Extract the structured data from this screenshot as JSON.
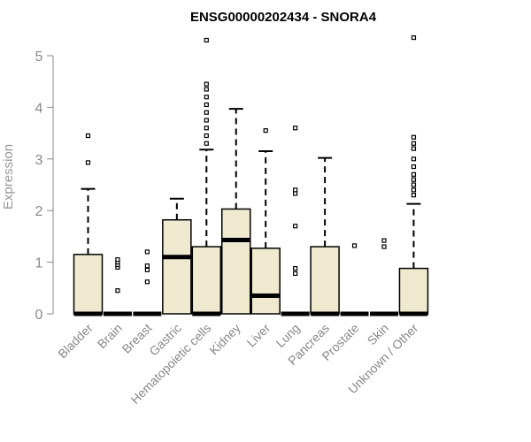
{
  "chart_data": {
    "type": "boxplot",
    "title": "ENSG00000202434 - SNORA4",
    "ylabel": "Expression",
    "xlabel": "",
    "ylim": [
      0,
      5
    ],
    "yticks": [
      0,
      1,
      2,
      3,
      4,
      5
    ],
    "grid": false,
    "legend": "none",
    "colors": {
      "box_fill": "#efe9d0",
      "box_stroke": "#000000",
      "axis": "#888888"
    },
    "categories": [
      "Bladder",
      "Brain",
      "Breast",
      "Gastric",
      "Hematopoietic cells",
      "Kidney",
      "Liver",
      "Lung",
      "Pancreas",
      "Prostate",
      "Skin",
      "Unknown / Other"
    ],
    "boxes": [
      {
        "category": "Bladder",
        "q1": 0,
        "median": 0,
        "q3": 1.15,
        "whisker_low": 0,
        "whisker_high": 2.42,
        "outliers": [
          2.93,
          3.45
        ]
      },
      {
        "category": "Brain",
        "q1": 0,
        "median": 0,
        "q3": 0,
        "whisker_low": 0,
        "whisker_high": 0,
        "outliers": [
          0.45,
          0.9,
          0.95,
          1.0,
          1.05
        ]
      },
      {
        "category": "Breast",
        "q1": 0,
        "median": 0,
        "q3": 0,
        "whisker_low": 0,
        "whisker_high": 0,
        "outliers": [
          0.62,
          0.85,
          0.93,
          1.2
        ]
      },
      {
        "category": "Gastric",
        "q1": 0,
        "median": 1.1,
        "q3": 1.82,
        "whisker_low": 0,
        "whisker_high": 2.23,
        "outliers": []
      },
      {
        "category": "Hematopoietic cells",
        "q1": 0,
        "median": 0,
        "q3": 1.3,
        "whisker_low": 0,
        "whisker_high": 3.18,
        "outliers": [
          3.3,
          3.45,
          3.6,
          3.75,
          3.9,
          4.05,
          4.2,
          4.35,
          4.45,
          5.3
        ]
      },
      {
        "category": "Kidney",
        "q1": 0,
        "median": 1.43,
        "q3": 2.03,
        "whisker_low": 0,
        "whisker_high": 3.97,
        "outliers": []
      },
      {
        "category": "Liver",
        "q1": 0,
        "median": 0.35,
        "q3": 1.27,
        "whisker_low": 0,
        "whisker_high": 3.15,
        "outliers": [
          3.55
        ]
      },
      {
        "category": "Lung",
        "q1": 0,
        "median": 0,
        "q3": 0,
        "whisker_low": 0,
        "whisker_high": 0,
        "outliers": [
          0.78,
          0.88,
          1.7,
          2.33,
          2.4,
          3.6
        ]
      },
      {
        "category": "Pancreas",
        "q1": 0,
        "median": 0,
        "q3": 1.3,
        "whisker_low": 0,
        "whisker_high": 3.02,
        "outliers": []
      },
      {
        "category": "Prostate",
        "q1": 0,
        "median": 0,
        "q3": 0,
        "whisker_low": 0,
        "whisker_high": 0,
        "outliers": [
          1.32
        ]
      },
      {
        "category": "Skin",
        "q1": 0,
        "median": 0,
        "q3": 0,
        "whisker_low": 0,
        "whisker_high": 0,
        "outliers": [
          1.3,
          1.42
        ]
      },
      {
        "category": "Unknown / Other",
        "q1": 0,
        "median": 0,
        "q3": 0.88,
        "whisker_low": 0,
        "whisker_high": 2.13,
        "outliers": [
          2.3,
          2.4,
          2.5,
          2.6,
          2.7,
          2.85,
          3.0,
          3.2,
          3.3,
          3.42,
          5.35
        ]
      }
    ]
  }
}
